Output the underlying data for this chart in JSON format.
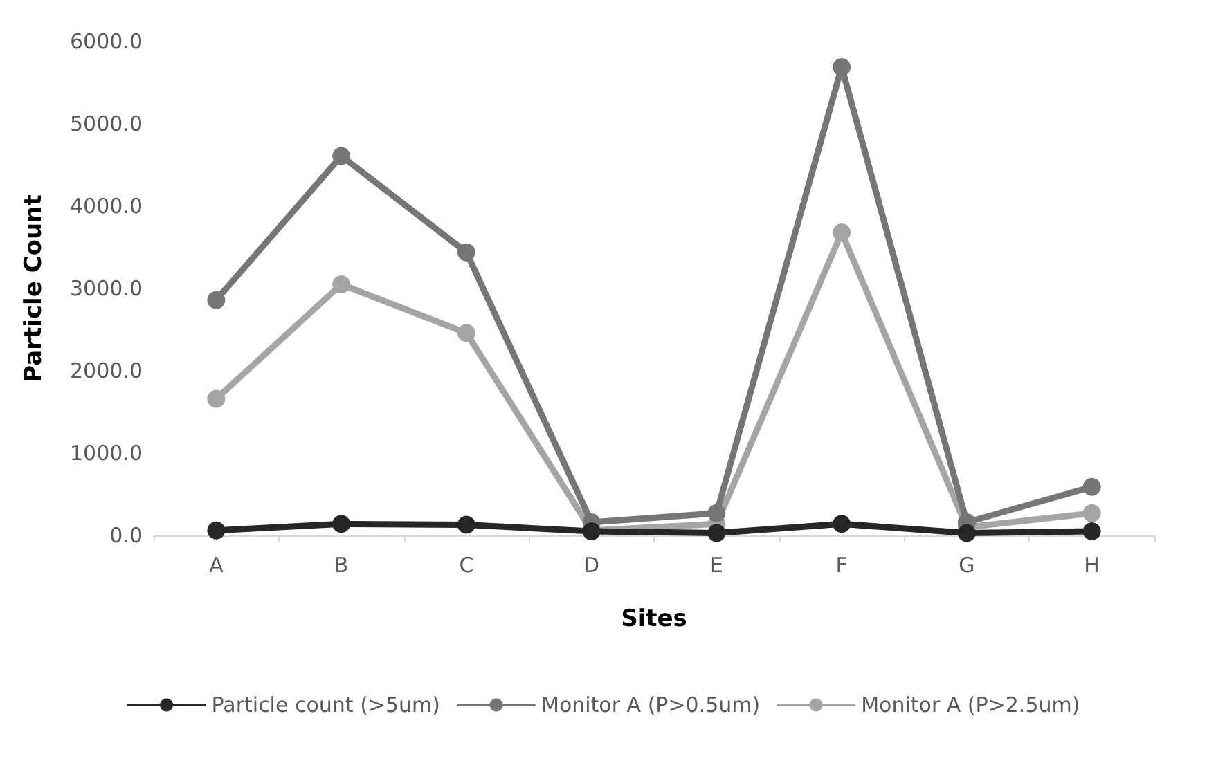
{
  "chart_data": {
    "type": "line",
    "xlabel": "Sites",
    "ylabel": "Particle Count",
    "categories": [
      "A",
      "B",
      "C",
      "D",
      "E",
      "F",
      "G",
      "H"
    ],
    "series": [
      {
        "name": "Particle count (>5um)",
        "color": "#262626",
        "values": [
          60,
          140,
          130,
          50,
          30,
          140,
          30,
          50
        ]
      },
      {
        "name": "Monitor A (P>0.5um)",
        "color": "#767676",
        "values": [
          2860,
          4610,
          3440,
          160,
          270,
          5690,
          160,
          590
        ]
      },
      {
        "name": "Monitor A (P>2.5um)",
        "color": "#a5a5a5",
        "values": [
          1660,
          3050,
          2460,
          60,
          140,
          3680,
          100,
          270
        ]
      }
    ],
    "ylim": [
      0,
      6000
    ],
    "yticks": [
      {
        "value": 0,
        "label": "0.0"
      },
      {
        "value": 1000,
        "label": "1000.0"
      },
      {
        "value": 2000,
        "label": "2000.0"
      },
      {
        "value": 3000,
        "label": "3000.0"
      },
      {
        "value": 4000,
        "label": "4000.0"
      },
      {
        "value": 5000,
        "label": "5000.0"
      },
      {
        "value": 6000,
        "label": "6000.0"
      }
    ],
    "grid": false,
    "legend": "bottom",
    "marker": "circle",
    "line_style": "solid"
  }
}
